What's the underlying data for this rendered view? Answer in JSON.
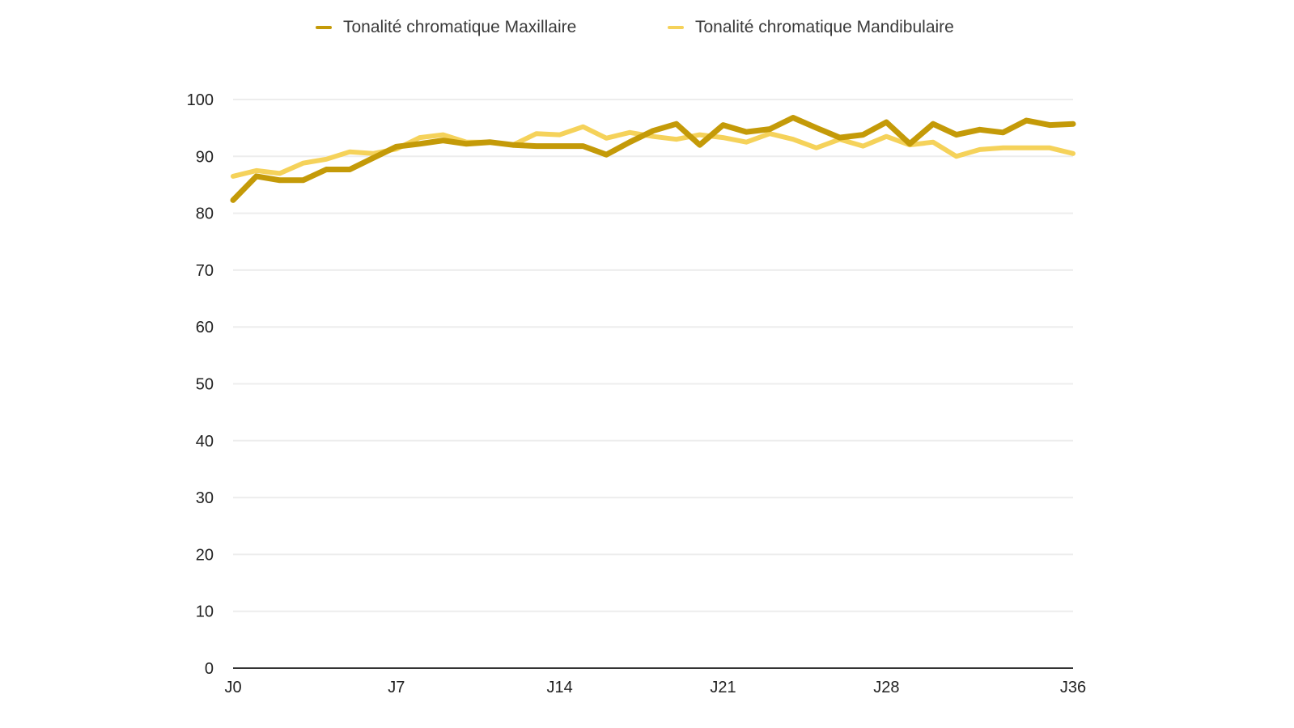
{
  "chart_data": {
    "type": "line",
    "title": "",
    "xlabel": "",
    "ylabel": "",
    "ylim": [
      0,
      100
    ],
    "yticks": [
      0,
      10,
      20,
      30,
      40,
      50,
      60,
      70,
      80,
      90,
      100
    ],
    "x": [
      0,
      1,
      2,
      3,
      4,
      5,
      6,
      7,
      8,
      9,
      10,
      11,
      12,
      13,
      14,
      15,
      16,
      17,
      18,
      19,
      20,
      21,
      22,
      23,
      24,
      25,
      26,
      27,
      28,
      29,
      30,
      31,
      32,
      33,
      34,
      35,
      36
    ],
    "xticks": [
      {
        "x": 0,
        "label": "J0"
      },
      {
        "x": 7,
        "label": "J7"
      },
      {
        "x": 14,
        "label": "J14"
      },
      {
        "x": 21,
        "label": "J21"
      },
      {
        "x": 28,
        "label": "J28"
      },
      {
        "x": 36,
        "label": "J36"
      }
    ],
    "grid": true,
    "legend_position": "top-center",
    "series": [
      {
        "name": "Tonalité chromatique Mandibulaire",
        "color": "#F5D25A",
        "values": [
          86.5,
          87.5,
          87,
          88.8,
          89.5,
          90.8,
          90.5,
          91.3,
          93.3,
          93.8,
          92.5,
          92.5,
          92.0,
          94.0,
          93.8,
          95.2,
          93.2,
          94.2,
          93.5,
          93.0,
          93.8,
          93.3,
          92.5,
          94.0,
          93.0,
          91.5,
          93.0,
          91.8,
          93.5,
          92.0,
          92.5,
          90.0,
          91.2,
          91.5,
          91.5,
          91.5,
          90.5
        ]
      },
      {
        "name": "Tonalité chromatique Maxillaire",
        "color": "#C49A08",
        "values": [
          82.3,
          86.5,
          85.8,
          85.8,
          87.7,
          87.7,
          89.7,
          91.7,
          92.2,
          92.8,
          92.2,
          92.5,
          92.0,
          91.8,
          91.8,
          91.8,
          90.3,
          92.5,
          94.5,
          95.7,
          92.0,
          95.5,
          94.3,
          94.8,
          96.8,
          95.0,
          93.3,
          93.8,
          96.0,
          92.2,
          95.7,
          93.8,
          94.7,
          94.2,
          96.3,
          95.5,
          95.7
        ]
      }
    ]
  }
}
